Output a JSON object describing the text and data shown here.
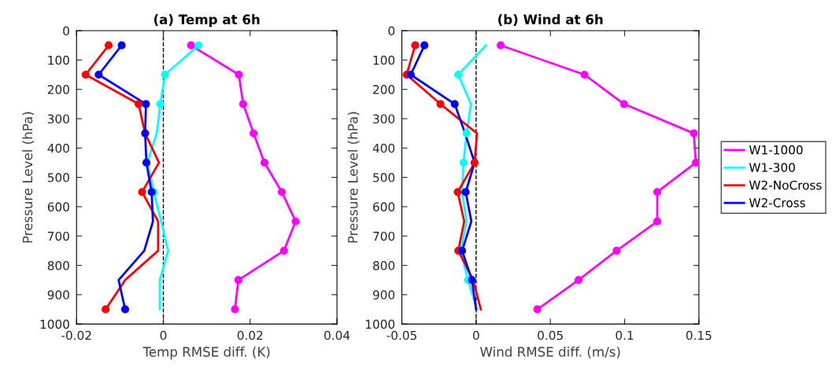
{
  "chart_data": [
    {
      "type": "line",
      "orientation": "horizontal",
      "title": "(a) Temp at 6h",
      "xlabel": "Temp RMSE diff. (K)",
      "ylabel": "Pressure Level (hPa)",
      "x": [
        50,
        150,
        250,
        350,
        450,
        550,
        650,
        750,
        850,
        950
      ],
      "xlim": [
        -0.02,
        0.04
      ],
      "xticks": [
        -0.02,
        0,
        0.02,
        0.04
      ],
      "ylim": [
        1000,
        0
      ],
      "yticks": [
        0,
        100,
        200,
        300,
        400,
        500,
        600,
        700,
        800,
        900,
        1000
      ],
      "grid": false,
      "legend": false,
      "line_style": "solid",
      "ref_lines": [
        {
          "axis": "x",
          "value": 0,
          "color": "#000000",
          "line_style": "dashed"
        }
      ],
      "series": [
        {
          "color": "#ff00ff",
          "values": [
            0.0064,
            0.0174,
            0.0184,
            0.0208,
            0.0233,
            0.0273,
            0.0305,
            0.0278,
            0.0173,
            0.0165
          ]
        },
        {
          "color": "#00ffff",
          "values": [
            0.0081,
            0.0004,
            -0.0007,
            -0.0015,
            -0.0037,
            -0.0022,
            -0.0005,
            0.0011,
            -0.0008,
            -0.0008
          ]
        },
        {
          "color": "#ff0000",
          "values": [
            -0.0126,
            -0.0179,
            -0.0057,
            -0.0042,
            -0.001,
            -0.0049,
            -0.0012,
            -0.0012,
            -0.0088,
            -0.0133
          ]
        },
        {
          "color": "#0000ff",
          "values": [
            -0.0096,
            -0.0149,
            -0.004,
            -0.0042,
            -0.0039,
            -0.0027,
            -0.0024,
            -0.0044,
            -0.0103,
            -0.0088
          ]
        },
        {
          "type": "scatter",
          "marker": "circle",
          "color": "#ff00ff",
          "values": [
            0.0064,
            0.0174,
            0.0184,
            0.0208,
            0.0233,
            0.0273,
            0.0305,
            0.0278,
            0.0173,
            0.0165
          ]
        },
        {
          "type": "scatter",
          "marker": "circle",
          "color": "#00ffff",
          "values": [
            0.0081,
            0.0004,
            -0.0007,
            null,
            null,
            -0.0022,
            null,
            null,
            null,
            null
          ]
        },
        {
          "type": "scatter",
          "marker": "circle",
          "color": "#ff0000",
          "values": [
            -0.0126,
            -0.0179,
            -0.0057,
            null,
            null,
            -0.0049,
            null,
            null,
            null,
            -0.0133
          ]
        },
        {
          "type": "scatter",
          "marker": "circle",
          "color": "#0000ff",
          "values": [
            -0.0096,
            -0.0149,
            -0.004,
            -0.0042,
            -0.0039,
            -0.0027,
            null,
            null,
            null,
            -0.0088
          ]
        }
      ]
    },
    {
      "type": "line",
      "orientation": "horizontal",
      "title": "(b) Wind at 6h",
      "xlabel": "Wind RMSE diff. (m/s)",
      "ylabel": "Pressure Level (hPa)",
      "x": [
        50,
        150,
        250,
        350,
        450,
        550,
        650,
        750,
        850,
        950
      ],
      "xlim": [
        -0.05,
        0.15
      ],
      "xticks": [
        -0.05,
        0,
        0.05,
        0.1,
        0.15
      ],
      "ylim": [
        1000,
        0
      ],
      "yticks": [
        0,
        100,
        200,
        300,
        400,
        500,
        600,
        700,
        800,
        900,
        1000
      ],
      "grid": false,
      "legend": "right",
      "line_style": "solid",
      "ref_lines": [
        {
          "axis": "x",
          "value": 0,
          "color": "#000000",
          "line_style": "dashed"
        }
      ],
      "series": [
        {
          "name": "W1-1000",
          "color": "#ff00ff",
          "values": [
            0.0166,
            0.073,
            0.0996,
            0.1466,
            0.148,
            0.122,
            0.122,
            0.0946,
            0.069,
            0.0412
          ]
        },
        {
          "name": "W1-300",
          "color": "#00ffff",
          "values": [
            0.0066,
            -0.012,
            -0.0034,
            -0.0064,
            -0.0084,
            -0.0094,
            -0.0064,
            -0.0104,
            -0.0054,
            0.0006
          ]
        },
        {
          "name": "W2-NoCross",
          "color": "#ff0000",
          "values": [
            -0.041,
            -0.0468,
            -0.024,
            0.0006,
            -0.001,
            -0.0124,
            -0.008,
            -0.012,
            -0.002,
            0.0032
          ]
        },
        {
          "name": "W2-Cross",
          "color": "#0000ff",
          "values": [
            -0.0348,
            -0.044,
            -0.0144,
            -0.0074,
            -0.001,
            -0.007,
            -0.0032,
            -0.0094,
            -0.0028,
            0
          ]
        },
        {
          "type": "scatter",
          "marker": "circle",
          "color": "#ff00ff",
          "values": [
            0.0166,
            0.073,
            0.0996,
            0.1466,
            0.148,
            0.122,
            0.122,
            0.0946,
            0.069,
            0.0412
          ]
        },
        {
          "type": "scatter",
          "marker": "circle",
          "color": "#00ffff",
          "values": [
            null,
            -0.012,
            null,
            -0.0064,
            -0.0084,
            null,
            null,
            null,
            -0.0054,
            null
          ]
        },
        {
          "type": "scatter",
          "marker": "circle",
          "color": "#ff0000",
          "values": [
            -0.041,
            -0.0468,
            -0.024,
            null,
            -0.001,
            -0.0124,
            null,
            -0.012,
            null,
            null
          ]
        },
        {
          "type": "scatter",
          "marker": "circle",
          "color": "#0000ff",
          "values": [
            -0.0348,
            -0.044,
            -0.0144,
            null,
            null,
            -0.007,
            null,
            -0.0094,
            -0.0028,
            null
          ]
        }
      ]
    }
  ]
}
